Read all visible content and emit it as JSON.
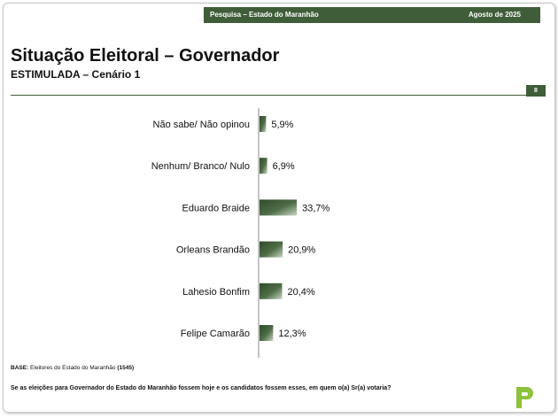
{
  "header": {
    "survey_label": "Pesquisa – Estado do Maranhão",
    "date_label": "Agosto de 2025",
    "page_number": "8"
  },
  "slide": {
    "title": "Situação Eleitoral – Governador",
    "subtitle": "ESTIMULADA – Cenário 1",
    "base_prefix": "BASE:",
    "base_text": "Eleitores do Estado do Maranhão",
    "base_count": "(1545)",
    "question": "Se as eleições para Governador do Estado do Maranhão fossem hoje e os candidatos fossem esses, em quem o(a) Sr(a) votaria?"
  },
  "colors": {
    "accent": "#3f5d38",
    "bar_dark": "#3f5d38",
    "bar_light": "#c9d6c2"
  },
  "chart_data": {
    "type": "bar",
    "orientation": "horizontal",
    "categories": [
      "Não sabe/ Não opinou",
      "Nenhum/ Branco/ Nulo",
      "Eduardo Braide",
      "Orleans Brandão",
      "Lahesio Bonfim",
      "Felipe Camarão"
    ],
    "values": [
      5.9,
      6.9,
      33.7,
      20.9,
      20.4,
      12.3
    ],
    "value_labels": [
      "5,9%",
      "6,9%",
      "33,7%",
      "20,9%",
      "20,4%",
      "12,3%"
    ],
    "unit": "%",
    "xlim": [
      0,
      100
    ],
    "grid": false,
    "legend": "none"
  }
}
